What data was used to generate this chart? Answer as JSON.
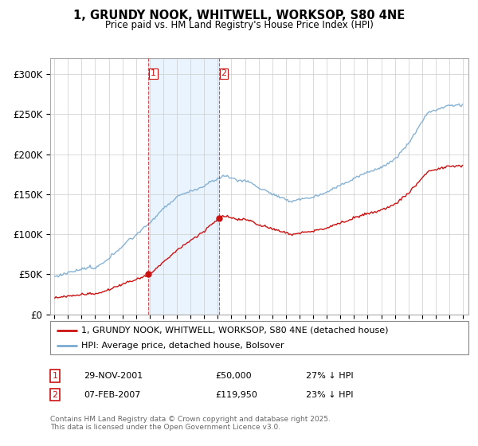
{
  "title": "1, GRUNDY NOOK, WHITWELL, WORKSOP, S80 4NE",
  "subtitle": "Price paid vs. HM Land Registry's House Price Index (HPI)",
  "legend_line1": "1, GRUNDY NOOK, WHITWELL, WORKSOP, S80 4NE (detached house)",
  "legend_line2": "HPI: Average price, detached house, Bolsover",
  "transaction1_date": "29-NOV-2001",
  "transaction1_price": "£50,000",
  "transaction1_hpi": "27% ↓ HPI",
  "transaction2_date": "07-FEB-2007",
  "transaction2_price": "£119,950",
  "transaction2_hpi": "23% ↓ HPI",
  "footer": "Contains HM Land Registry data © Crown copyright and database right 2025.\nThis data is licensed under the Open Government Licence v3.0.",
  "ylim": [
    0,
    320000
  ],
  "yticks": [
    0,
    50000,
    100000,
    150000,
    200000,
    250000,
    300000
  ],
  "ytick_labels": [
    "£0",
    "£50K",
    "£100K",
    "£150K",
    "£200K",
    "£250K",
    "£300K"
  ],
  "hpi_color": "#7aaad0",
  "price_color": "#cc1111",
  "vline1_x": 2001.92,
  "vline2_x": 2007.1,
  "marker1_x": 2001.92,
  "marker1_y": 50000,
  "marker2_x": 2007.1,
  "marker2_y": 119950,
  "shade_color": "#ddeeff",
  "shade_alpha": 0.6,
  "xlim_left": 1994.7,
  "xlim_right": 2025.4
}
